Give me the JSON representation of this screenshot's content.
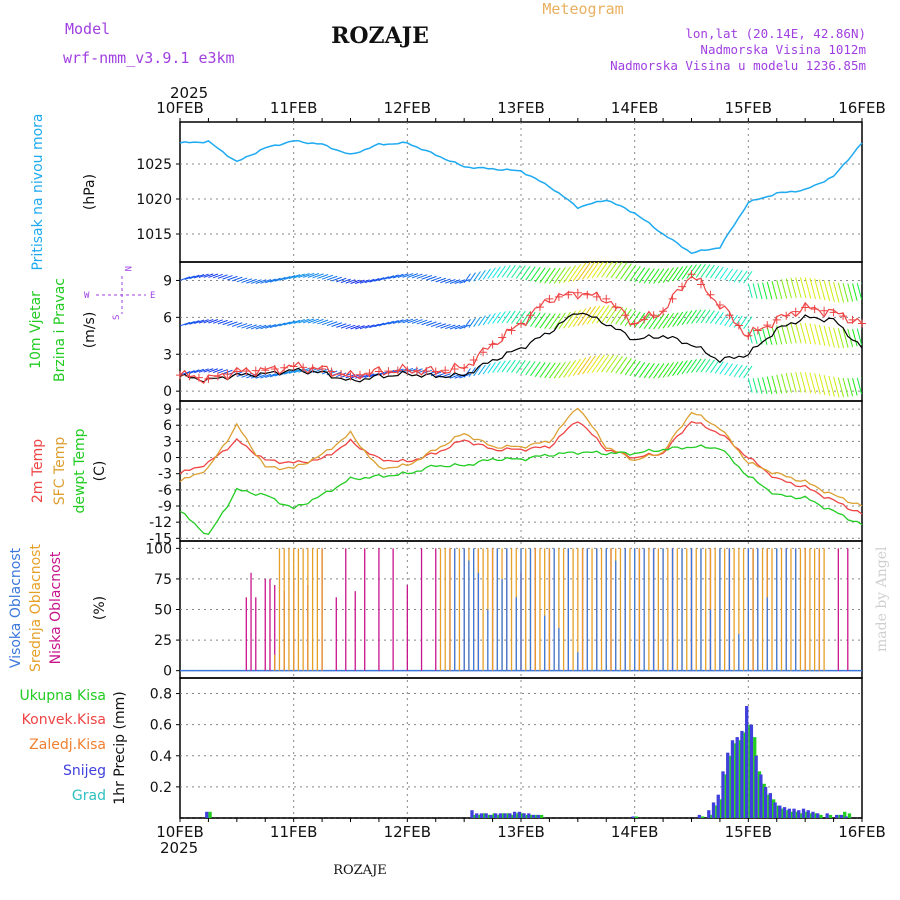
{
  "header": {
    "model_label": "Model",
    "model_name": "wrf-nmm_v3.9.1 e3km",
    "station": "ROZAJE",
    "product": "Meteogram",
    "coords": "lon,lat (20.14E, 42.86N)",
    "elevation": "Nadmorska Visina 1012m",
    "model_elevation": "Nadmorska Visina u modelu 1236.85m",
    "year_top": "2025",
    "year_bottom": "2025",
    "footer_station": "ROZAJE",
    "credit": "made by Angel"
  },
  "colors": {
    "pressure": "#1eaaf0",
    "wind_label": "#22cc22",
    "temp2m": "#ee4444",
    "sfc": "#dca032",
    "dewpt": "#22cc22",
    "high_cloud": "#3c78dc",
    "mid_cloud": "#e6a028",
    "low_cloud": "#c8148c",
    "header_purple": "#a040e0",
    "header_orange": "#e8b060"
  },
  "chart_data": [
    {
      "id": "pressure",
      "type": "line",
      "ylabel_lines": [
        "Pritisak na nivou mora",
        "(hPa)"
      ],
      "ylim": [
        1011,
        1031
      ],
      "yticks": [
        1015,
        1020,
        1025
      ],
      "x_hours": [
        0,
        6,
        12,
        18,
        24,
        30,
        36,
        42,
        48,
        54,
        60,
        66,
        72,
        78,
        84,
        90,
        96,
        102,
        108,
        114,
        120,
        126,
        132,
        138,
        144
      ],
      "series": [
        {
          "name": "MSLP",
          "values": [
            1028.0,
            1028.2,
            1025.3,
            1027.3,
            1028.3,
            1027.8,
            1026.3,
            1027.8,
            1028.0,
            1026.3,
            1024.6,
            1024.3,
            1024.0,
            1021.8,
            1018.8,
            1019.9,
            1018.0,
            1015.0,
            1012.3,
            1013.1,
            1019.5,
            1020.8,
            1021.3,
            1023.2,
            1028.0
          ]
        }
      ]
    },
    {
      "id": "wind",
      "type": "line",
      "ylabel_lines": [
        "10m Vjetar",
        "Brzina i Pravac",
        "(m/s)"
      ],
      "compass": {
        "north": "N",
        "east": "E",
        "west": "W",
        "south": "S"
      },
      "ylim": [
        -0.8,
        10.5
      ],
      "yticks": [
        0,
        3,
        6,
        9
      ],
      "barb_levels": [
        1.3,
        5.3,
        9.0
      ],
      "x_hours": [
        0,
        6,
        12,
        18,
        24,
        30,
        36,
        42,
        48,
        54,
        60,
        66,
        72,
        78,
        84,
        90,
        96,
        102,
        108,
        114,
        120,
        126,
        132,
        138,
        144
      ],
      "series": [
        {
          "name": "speed",
          "values": [
            1.2,
            0.9,
            1.3,
            1.4,
            1.7,
            1.5,
            0.8,
            1.2,
            1.4,
            1.2,
            1.3,
            2.5,
            3.5,
            4.8,
            6.5,
            5.5,
            4.2,
            4.5,
            3.8,
            2.5,
            3.0,
            5.0,
            6.0,
            5.8,
            3.5
          ]
        },
        {
          "name": "gust",
          "values": [
            1.3,
            1.0,
            1.6,
            1.7,
            2.0,
            1.8,
            1.2,
            1.6,
            1.7,
            1.6,
            1.9,
            3.8,
            5.5,
            7.5,
            8.0,
            7.5,
            5.5,
            6.5,
            9.5,
            7.0,
            4.5,
            5.8,
            6.8,
            6.4,
            5.5
          ]
        }
      ]
    },
    {
      "id": "temperature",
      "type": "line",
      "ylabel_lines": [
        "2m Temp",
        "SFC Temp",
        "dewpt Temp",
        "(C)"
      ],
      "ylim": [
        -15.5,
        10.5
      ],
      "yticks": [
        -15,
        -12,
        -9,
        -6,
        -3,
        0,
        3,
        6,
        9
      ],
      "x_hours": [
        0,
        6,
        12,
        18,
        24,
        30,
        36,
        42,
        48,
        54,
        60,
        66,
        72,
        78,
        84,
        90,
        96,
        102,
        108,
        114,
        120,
        126,
        132,
        138,
        144
      ],
      "series": [
        {
          "name": "2m Temp",
          "values": [
            -3.0,
            -1.0,
            3.2,
            -0.5,
            -1.0,
            -0.3,
            3.0,
            -0.3,
            -0.8,
            0.8,
            3.3,
            1.5,
            1.5,
            2.0,
            7.0,
            1.5,
            0.0,
            0.8,
            6.8,
            4.5,
            0.0,
            -4.0,
            -5.5,
            -8.0,
            -10.5
          ]
        },
        {
          "name": "SFC Temp",
          "values": [
            -4.5,
            -2.0,
            6.0,
            -1.8,
            -2.0,
            0.5,
            4.5,
            -2.0,
            -1.5,
            1.5,
            4.5,
            2.0,
            2.0,
            3.0,
            9.5,
            2.0,
            -0.5,
            1.0,
            8.5,
            5.5,
            -1.0,
            -3.0,
            -4.5,
            -7.0,
            -9.0
          ]
        },
        {
          "name": "dewpt Temp",
          "values": [
            -10.0,
            -14.5,
            -6.0,
            -7.0,
            -9.5,
            -7.0,
            -4.0,
            -3.5,
            -3.0,
            -1.5,
            -1.5,
            -0.3,
            -0.3,
            0.5,
            1.0,
            0.8,
            0.8,
            1.5,
            2.0,
            1.8,
            -3.5,
            -7.0,
            -7.5,
            -10.0,
            -12.5
          ]
        }
      ]
    },
    {
      "id": "clouds",
      "type": "bar",
      "ylabel_lines": [
        "Visoka Oblacnost",
        "Srednja Oblacnost",
        "Niska Oblacnost",
        "(%)"
      ],
      "ylim": [
        -6,
        106
      ],
      "yticks": [
        0,
        25,
        50,
        75,
        100
      ],
      "spikes": [
        {
          "series": "low",
          "hours": [
            14,
            15,
            16,
            18,
            19,
            20,
            22,
            24,
            27,
            30,
            33,
            35,
            37,
            39,
            42,
            45,
            48,
            51,
            54,
            57,
            60,
            63,
            66,
            69,
            72,
            75,
            78,
            82,
            85,
            88,
            91,
            94,
            97,
            100,
            104,
            108,
            112,
            116,
            121,
            124,
            128,
            132,
            135,
            139,
            141
          ],
          "values": [
            60,
            80,
            60,
            75,
            75,
            70,
            65,
            75,
            70,
            100,
            60,
            100,
            65,
            100,
            100,
            100,
            70,
            100,
            100,
            100,
            100,
            100,
            100,
            100,
            80,
            100,
            100,
            100,
            100,
            100,
            100,
            100,
            100,
            100,
            100,
            100,
            100,
            100,
            100,
            100,
            100,
            100,
            100,
            100,
            100
          ]
        },
        {
          "series": "mid",
          "hours": [
            20,
            21,
            22,
            23,
            24,
            25,
            26,
            27,
            28,
            29,
            30,
            55,
            56,
            57,
            58,
            59,
            60,
            61,
            62,
            63,
            64,
            65,
            66,
            67,
            68,
            69,
            70,
            71,
            72,
            73,
            74,
            75,
            76,
            77,
            78,
            79,
            80,
            81,
            82,
            83,
            84,
            85,
            86,
            87,
            88,
            89,
            90,
            91,
            92,
            93,
            94,
            95,
            96,
            97,
            98,
            99,
            100,
            101,
            102,
            103,
            104,
            105,
            106,
            107,
            108,
            109,
            110,
            111,
            112,
            113,
            114,
            115,
            116,
            117,
            118,
            119,
            120,
            121,
            122,
            123,
            124,
            125,
            126,
            127,
            128,
            129,
            130,
            131,
            132,
            133,
            134,
            135,
            136
          ],
          "values": [
            13,
            100,
            100,
            100,
            100,
            100,
            100,
            100,
            100,
            100,
            100,
            100,
            100,
            100,
            100,
            100,
            100,
            100,
            100,
            100,
            100,
            100,
            100,
            100,
            100,
            100,
            100,
            100,
            100,
            100,
            100,
            100,
            100,
            100,
            100,
            100,
            100,
            100,
            100,
            100,
            100,
            100,
            100,
            100,
            100,
            100,
            100,
            100,
            100,
            100,
            100,
            100,
            100,
            100,
            100,
            100,
            100,
            100,
            100,
            100,
            100,
            100,
            100,
            100,
            100,
            100,
            100,
            100,
            100,
            100,
            100,
            100,
            100,
            100,
            100,
            100,
            100,
            100,
            100,
            100,
            100,
            100,
            100,
            100,
            100,
            100,
            100,
            100,
            100,
            100,
            100,
            100,
            100
          ]
        },
        {
          "series": "high",
          "hours": [
            58,
            60,
            61,
            62,
            63,
            65,
            67,
            68,
            69,
            71,
            72,
            74,
            77,
            79,
            80,
            82,
            84,
            86,
            88,
            90,
            92,
            94,
            96,
            98,
            100,
            102,
            104,
            106,
            108,
            110,
            112,
            114,
            116,
            118,
            120,
            122,
            124,
            126,
            128,
            130
          ],
          "values": [
            100,
            100,
            90,
            100,
            80,
            50,
            100,
            75,
            100,
            60,
            100,
            100,
            45,
            100,
            35,
            100,
            15,
            100,
            100,
            100,
            90,
            100,
            100,
            100,
            100,
            100,
            100,
            100,
            100,
            100,
            50,
            100,
            100,
            30,
            100,
            100,
            60,
            100,
            100,
            100
          ]
        }
      ]
    },
    {
      "id": "precip",
      "type": "bar",
      "ylabel_lines": [
        "1hr Precip (mm)"
      ],
      "legend": [
        "Ukupna Kisa",
        "Konvek.Kisa",
        "Zaledj.Kisa",
        "Snijeg",
        "Grad"
      ],
      "legend_colors": [
        "#22cc22",
        "#ee4444",
        "#f08030",
        "#4040dc",
        "#30c0c0"
      ],
      "ylim": [
        0,
        0.9
      ],
      "yticks": [
        0.2,
        0.4,
        0.6,
        0.8
      ],
      "x_hours": [
        6,
        62,
        63,
        64,
        65,
        66,
        67,
        68,
        69,
        70,
        71,
        72,
        73,
        74,
        75,
        76,
        96,
        110,
        112,
        113,
        114,
        115,
        116,
        117,
        118,
        119,
        120,
        121,
        122,
        123,
        124,
        125,
        126,
        127,
        128,
        129,
        130,
        131,
        132,
        133,
        134,
        135,
        137,
        139,
        140,
        141
      ],
      "snow": [
        0.04,
        0.05,
        0.03,
        0.03,
        0.03,
        0.02,
        0.03,
        0.03,
        0.03,
        0.03,
        0.04,
        0.04,
        0.03,
        0.03,
        0.02,
        0.02,
        0.01,
        0.02,
        0.05,
        0.1,
        0.15,
        0.3,
        0.42,
        0.5,
        0.52,
        0.56,
        0.72,
        0.6,
        0.4,
        0.28,
        0.2,
        0.16,
        0.1,
        0.08,
        0.07,
        0.06,
        0.06,
        0.05,
        0.06,
        0.05,
        0.04,
        0.03,
        0.03,
        0.02,
        0.02,
        0.01
      ],
      "rain": [
        0.04,
        0.02,
        0.02,
        0.03,
        0.02,
        0.03,
        0.02,
        0.03,
        0.03,
        0.02,
        0.03,
        0.03,
        0.02,
        0.02,
        0.02,
        0.02,
        0.01,
        0.01,
        0.02,
        0.08,
        0.12,
        0.28,
        0.4,
        0.48,
        0.5,
        0.55,
        0.6,
        0.52,
        0.3,
        0.22,
        0.15,
        0.12,
        0.08,
        0.06,
        0.05,
        0.04,
        0.04,
        0.03,
        0.04,
        0.03,
        0.03,
        0.02,
        0.02,
        0.02,
        0.04,
        0.03
      ]
    }
  ],
  "x_axis": {
    "hours": [
      0,
      24,
      48,
      72,
      96,
      120,
      144
    ],
    "labels": [
      "10FEB",
      "11FEB",
      "12FEB",
      "13FEB",
      "14FEB",
      "15FEB",
      "16FEB"
    ]
  }
}
